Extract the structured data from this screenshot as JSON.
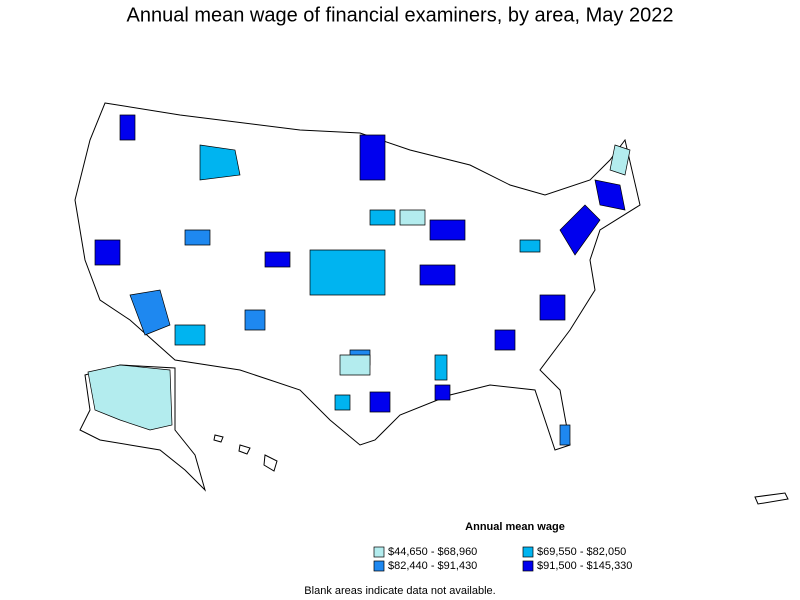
{
  "title": "Annual mean wage of financial examiners, by area, May 2022",
  "legend": {
    "title": "Annual mean wage",
    "items": [
      {
        "label": "$44,650 - $68,960",
        "color": "#b3ecee"
      },
      {
        "label": "$69,550 - $82,050",
        "color": "#00b4f0"
      },
      {
        "label": "$82,440 - $91,430",
        "color": "#1e88f0"
      },
      {
        "label": "$91,500 - $145,330",
        "color": "#0000ee"
      }
    ]
  },
  "note": "Blank areas indicate data not available."
}
